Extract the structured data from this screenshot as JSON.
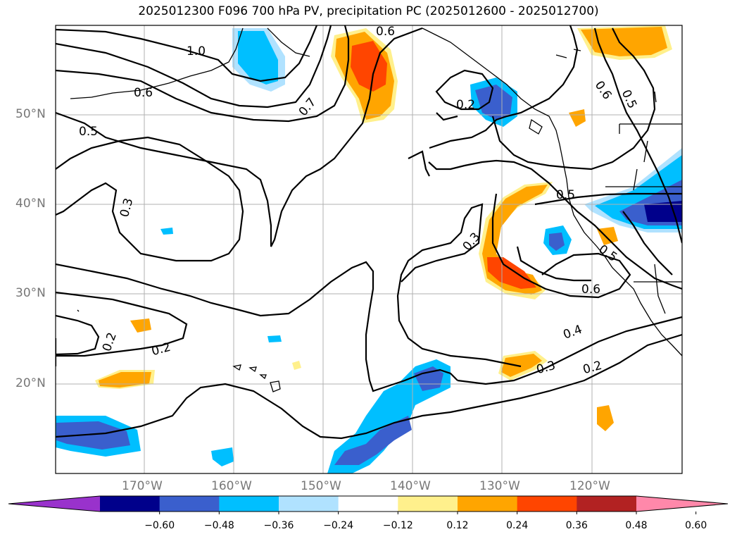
{
  "title": "2025012300 F096 700 hPa PV, precipitation PC (2025012600 - 2025012700)",
  "lat_labels": [
    "50°N",
    "40°N",
    "30°N",
    "20°N"
  ],
  "lon_labels": [
    "170°W",
    "160°W",
    "150°W",
    "140°W",
    "130°W",
    "120°W"
  ],
  "contour_labels": [
    "1.0",
    "0.6",
    "0.6",
    "0.5",
    "0.3",
    "0.7",
    "0.2",
    "0.6",
    "0.5",
    "0.5",
    "0.3",
    "0.5",
    "0.6",
    "0.4",
    "0.3",
    "0.2",
    "0.2",
    "0.2",
    "0.6",
    "0.5"
  ],
  "colorbar": {
    "ticks": [
      "−0.60",
      "−0.48",
      "−0.36",
      "−0.24",
      "−0.12",
      "0.12",
      "0.24",
      "0.36",
      "0.48",
      "0.60"
    ],
    "colors": [
      "#9932cc",
      "#00008b",
      "#3a5fcd",
      "#00bfff",
      "#b0e2ff",
      "#ffffff",
      "#fff08c",
      "#ffa500",
      "#ff4500",
      "#b22222",
      "#ff88aa"
    ]
  },
  "palette": {
    "neg_weak": "#b0e2ff",
    "neg_mid": "#00bfff",
    "neg_strong": "#3a5fcd",
    "neg_max": "#00008b",
    "pos_weak": "#fff08c",
    "pos_mid": "#ffa500",
    "pos_strong": "#ff4500"
  }
}
